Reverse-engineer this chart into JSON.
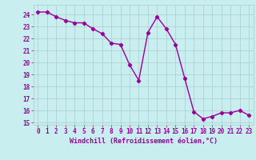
{
  "hours": [
    0,
    1,
    2,
    3,
    4,
    5,
    6,
    7,
    8,
    9,
    10,
    11,
    12,
    13,
    14,
    15,
    16,
    17,
    18,
    19,
    20,
    21,
    22,
    23
  ],
  "windchill": [
    24.2,
    24.2,
    23.8,
    23.5,
    23.3,
    23.3,
    22.8,
    22.4,
    21.6,
    21.5,
    19.8,
    18.5,
    22.5,
    23.8,
    22.8,
    21.5,
    18.7,
    15.9,
    15.3,
    15.5,
    15.8,
    15.8,
    16.0,
    15.6
  ],
  "line_color": "#990099",
  "marker": "D",
  "marker_size": 2.2,
  "bg_color": "#c8eef0",
  "grid_color": "#aacccc",
  "ylim": [
    14.8,
    24.8
  ],
  "xlim": [
    -0.5,
    23.5
  ],
  "yticks": [
    15,
    16,
    17,
    18,
    19,
    20,
    21,
    22,
    23,
    24
  ],
  "xticks": [
    0,
    1,
    2,
    3,
    4,
    5,
    6,
    7,
    8,
    9,
    10,
    11,
    12,
    13,
    14,
    15,
    16,
    17,
    18,
    19,
    20,
    21,
    22,
    23
  ],
  "xlabel": "Windchill (Refroidissement éolien,°C)",
  "xlabel_fontsize": 6.0,
  "tick_fontsize": 5.5,
  "line_width": 1.0
}
